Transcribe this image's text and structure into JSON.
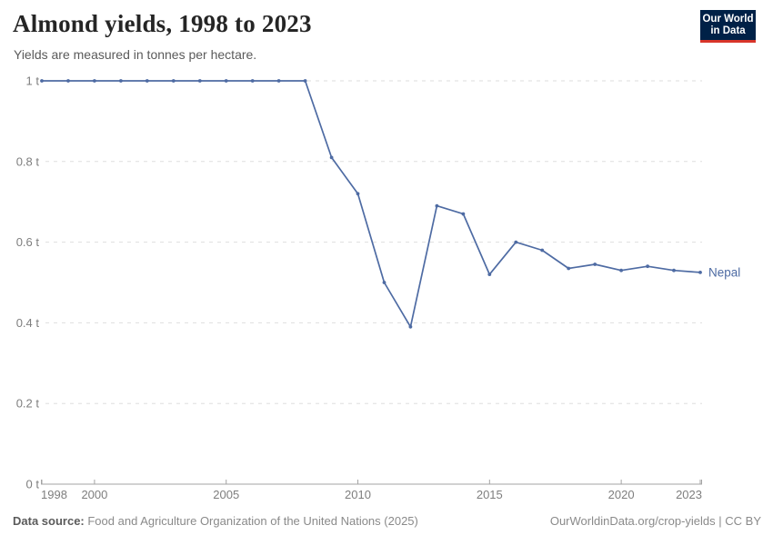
{
  "header": {
    "title": "Almond yields, 1998 to 2023",
    "subtitle": "Yields are measured in tonnes per hectare.",
    "logo": {
      "line1": "Our World",
      "line2": "in Data",
      "bg_color": "#002147",
      "stripe_color": "#d8352a"
    }
  },
  "chart_data": {
    "type": "line",
    "title": "Almond yields, 1998 to 2023",
    "subtitle": "Yields are measured in tonnes per hectare.",
    "y_unit": "tonnes per hectare",
    "xlim": [
      1998,
      2023
    ],
    "ylim": [
      0,
      1
    ],
    "grid": "horizontal-dashed",
    "legend": "series-label-at-line-end",
    "x": [
      1998,
      1999,
      2000,
      2001,
      2002,
      2003,
      2004,
      2005,
      2006,
      2007,
      2008,
      2009,
      2010,
      2011,
      2012,
      2013,
      2014,
      2015,
      2016,
      2017,
      2018,
      2019,
      2020,
      2021,
      2022,
      2023
    ],
    "series": [
      {
        "name": "Nepal",
        "color": "#4e6ba3",
        "values": [
          1,
          1,
          1,
          1,
          1,
          1,
          1,
          1,
          1,
          1,
          1,
          0.81,
          0.72,
          0.5,
          0.39,
          0.69,
          0.67,
          0.52,
          0.6,
          0.58,
          0.535,
          0.545,
          0.53,
          0.54,
          0.53,
          0.525
        ]
      }
    ],
    "yticks": [
      {
        "value": 0,
        "label": "0 t"
      },
      {
        "value": 0.2,
        "label": "0.2 t"
      },
      {
        "value": 0.4,
        "label": "0.4 t"
      },
      {
        "value": 0.6,
        "label": "0.6 t"
      },
      {
        "value": 0.8,
        "label": "0.8 t"
      },
      {
        "value": 1,
        "label": "1 t"
      }
    ],
    "xticks": [
      1998,
      2000,
      2005,
      2010,
      2015,
      2020,
      2023
    ]
  },
  "footer": {
    "datasource_label": "Data source:",
    "datasource_text": " Food and Agriculture Organization of the United Nations (2025)",
    "link_text": "OurWorldinData.org/crop-yields | CC BY"
  },
  "colors": {
    "grid": "#dedede",
    "axis": "#a3a3a3",
    "tick_label": "#7e7e7e",
    "series": "#4e6ba3"
  }
}
